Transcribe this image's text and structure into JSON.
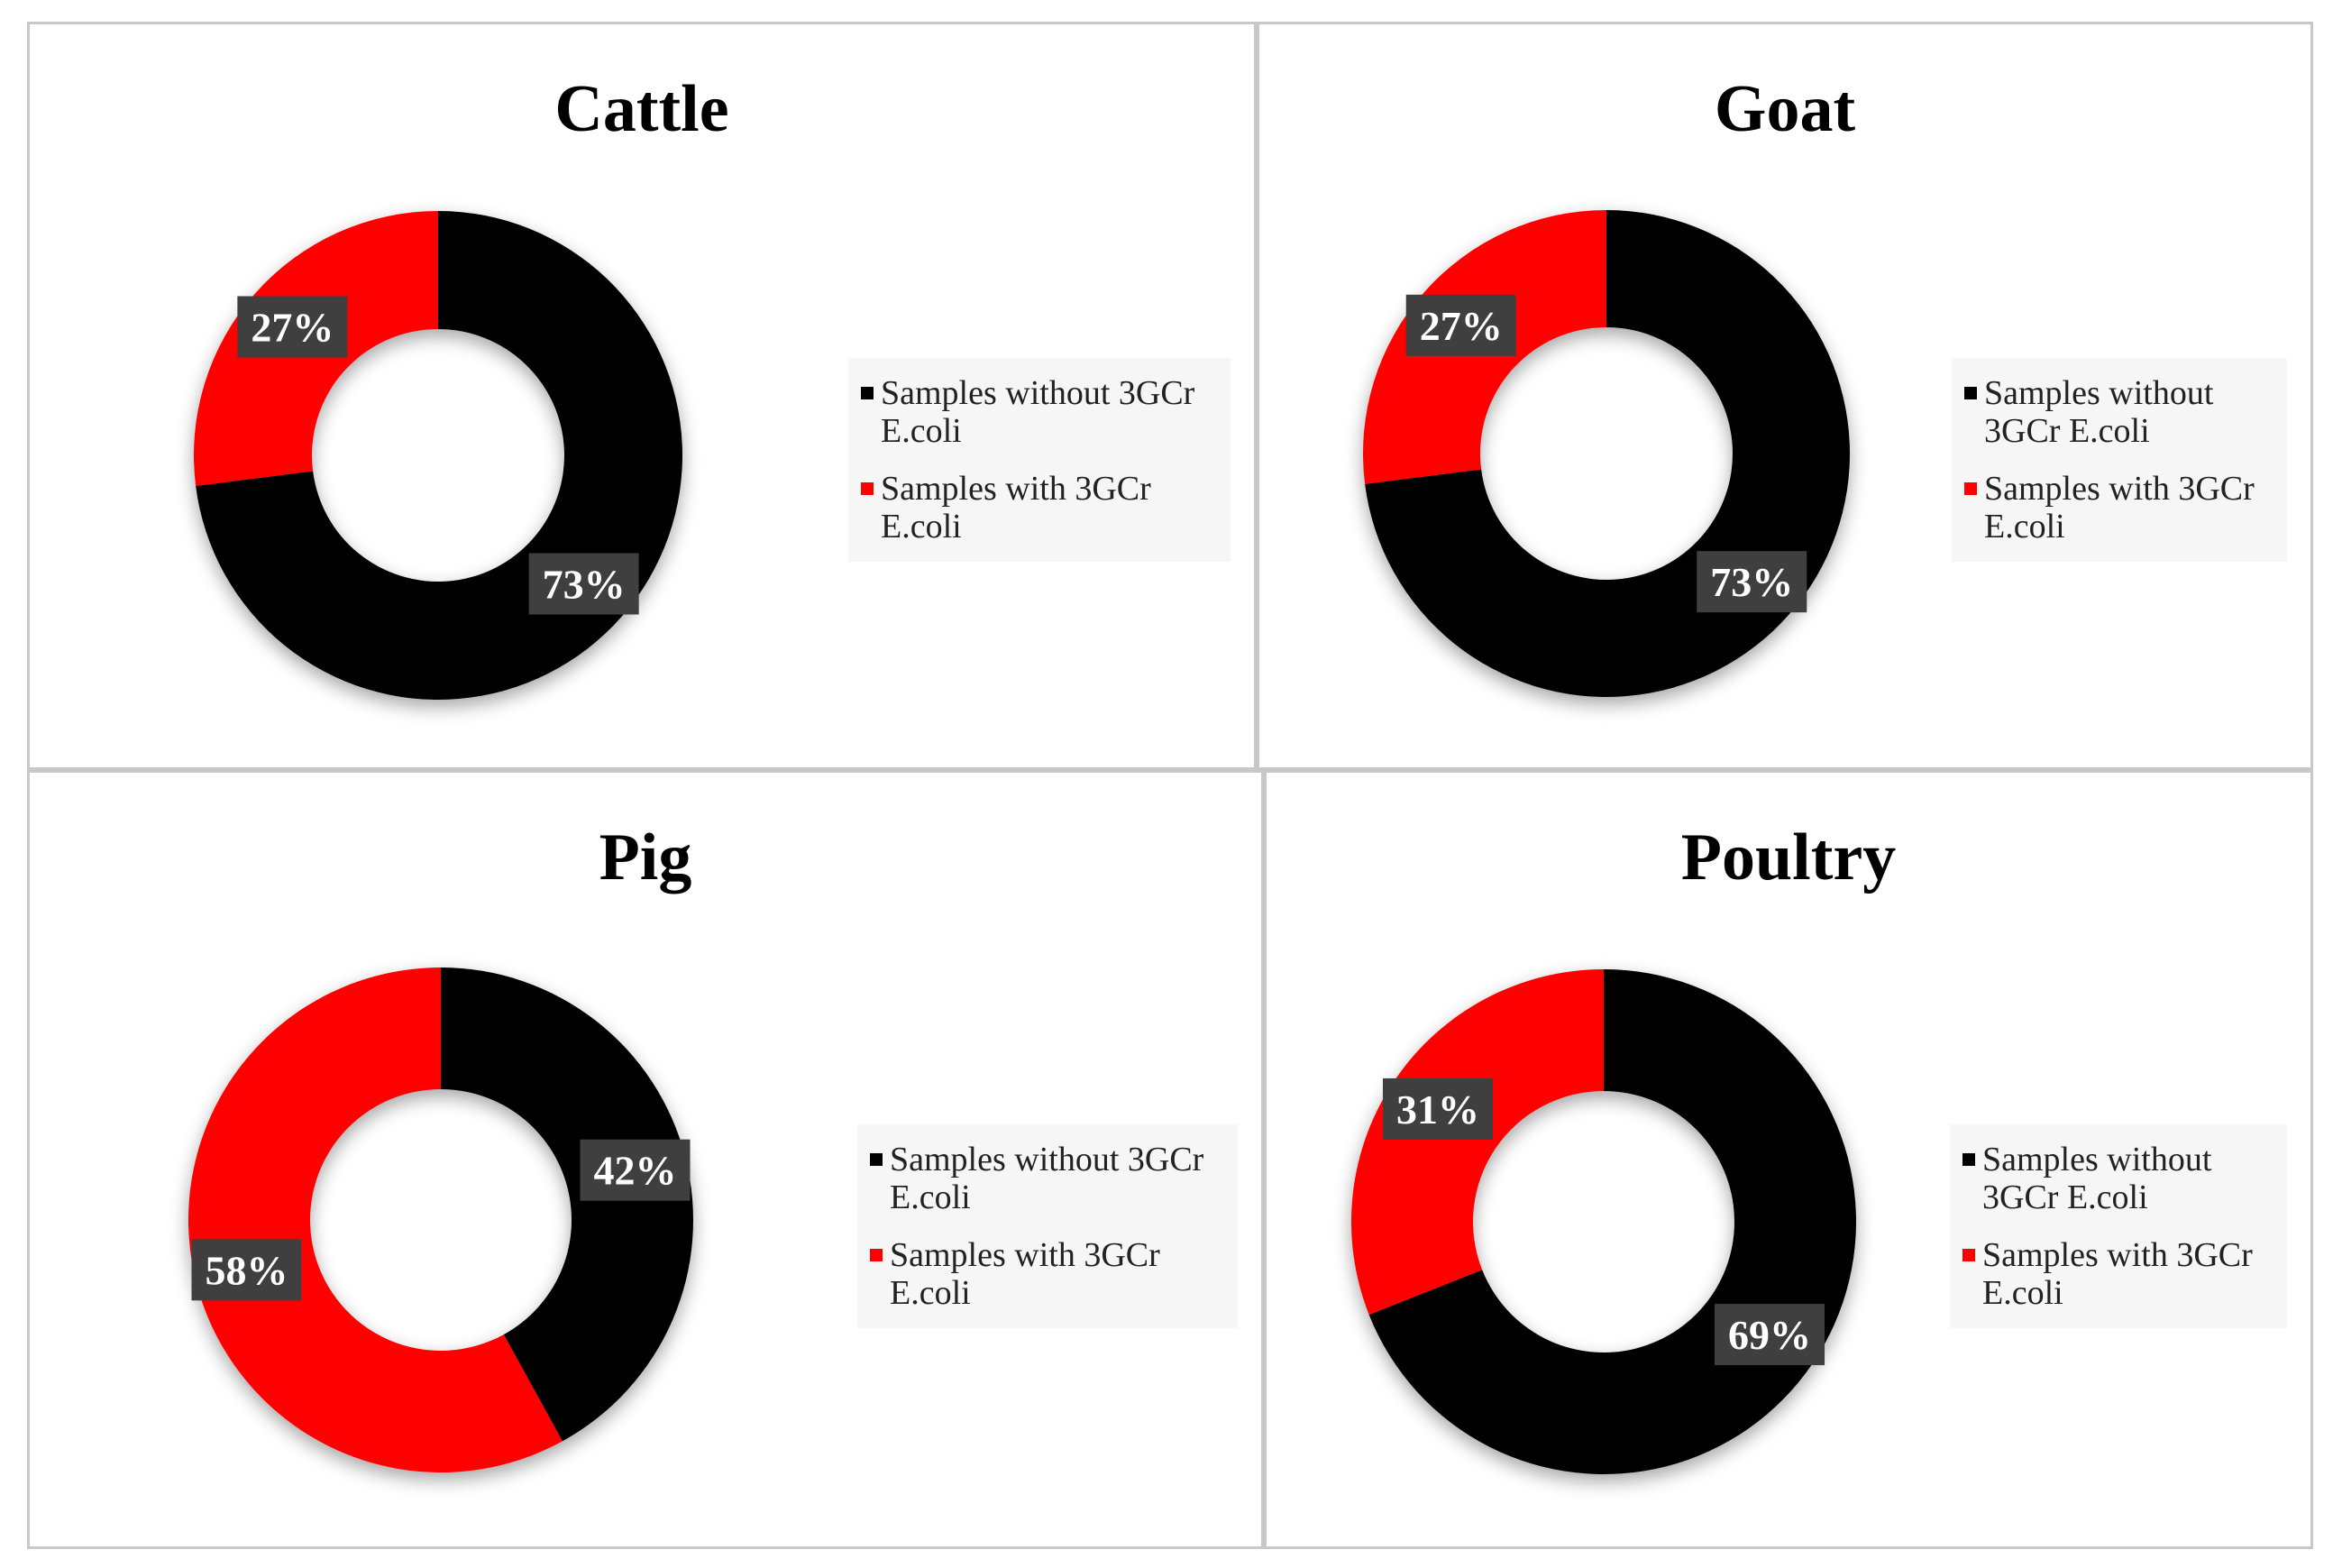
{
  "colors": {
    "without": "#000000",
    "with": "#ff0000",
    "label_bg": "#3f3f3f"
  },
  "chart_data": [
    {
      "type": "pie",
      "title": "Cattle",
      "categories": [
        "Samples without 3GCr E.coli",
        "Samples with 3GCr E.coli"
      ],
      "values": [
        73,
        27
      ],
      "labels": [
        "73%",
        "27%"
      ],
      "legend": [
        "Samples without 3GCr E.coli",
        "Samples with 3GCr E.coli"
      ]
    },
    {
      "type": "pie",
      "title": "Goat",
      "categories": [
        "Samples without 3GCr E.coli",
        "Samples with 3GCr E.coli"
      ],
      "values": [
        73,
        27
      ],
      "labels": [
        "73%",
        "27%"
      ],
      "legend": [
        "Samples without 3GCr E.coli",
        "Samples with 3GCr E.coli"
      ]
    },
    {
      "type": "pie",
      "title": "Pig",
      "categories": [
        "Samples without 3GCr E.coli",
        "Samples with 3GCr E.coli"
      ],
      "values": [
        42,
        58
      ],
      "labels": [
        "42%",
        "58%"
      ],
      "legend": [
        "Samples without 3GCr E.coli",
        "Samples with 3GCr E.coli"
      ]
    },
    {
      "type": "pie",
      "title": "Poultry",
      "categories": [
        "Samples without 3GCr E.coli",
        "Samples with 3GCr E.coli"
      ],
      "values": [
        69,
        31
      ],
      "labels": [
        "69%",
        "31%"
      ],
      "legend": [
        "Samples without 3GCr E.coli",
        "Samples with 3GCr E.coli"
      ]
    }
  ]
}
